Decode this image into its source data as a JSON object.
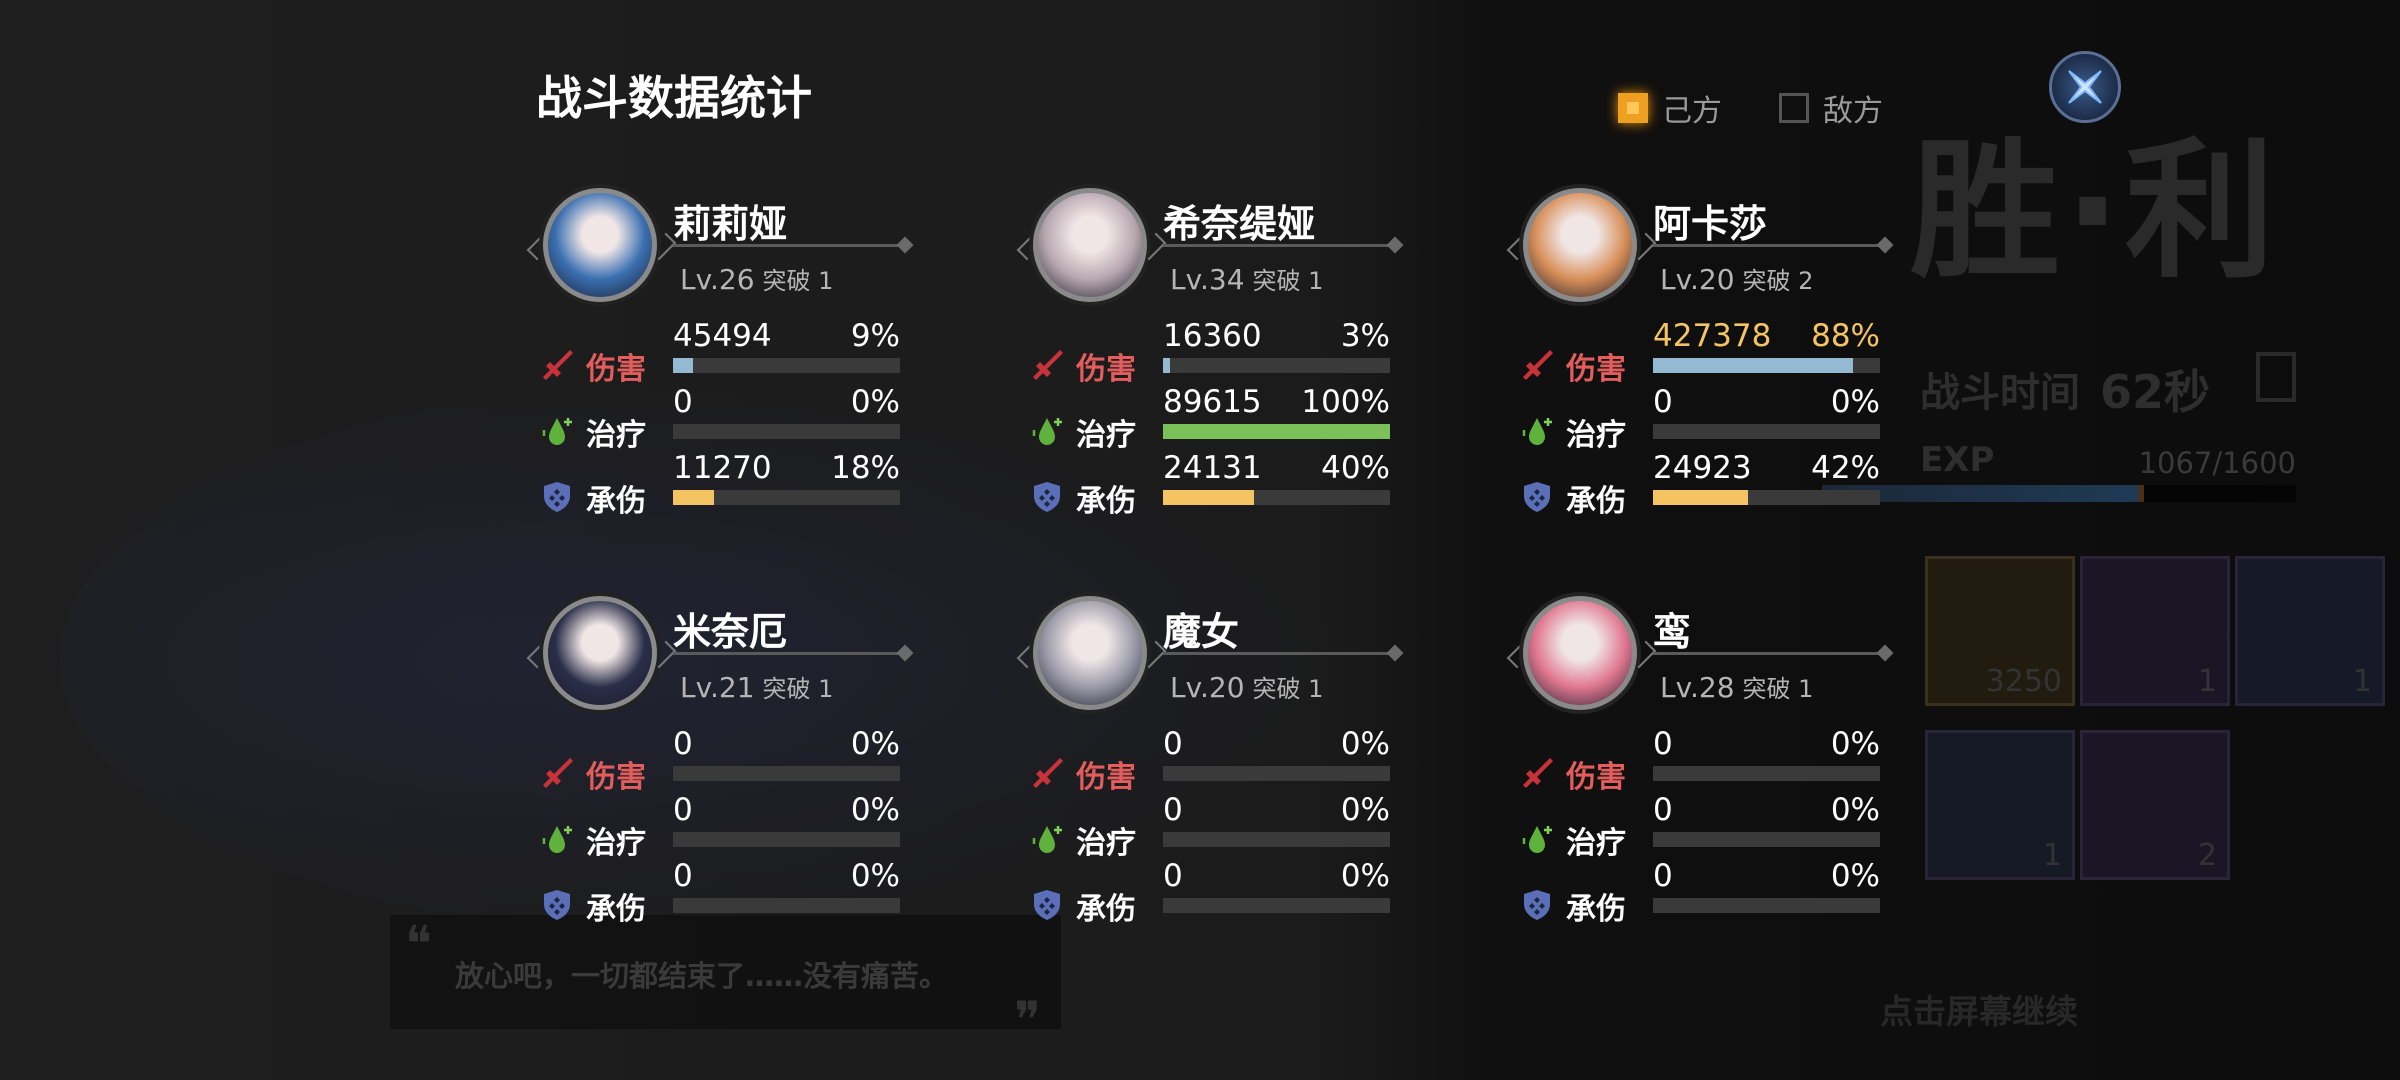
{
  "header": {
    "title": "战斗数据统计"
  },
  "filter": {
    "own_label": "己方",
    "own_checked": true,
    "enemy_label": "敌方",
    "enemy_checked": false
  },
  "close_icon": "close-x-icon",
  "background": {
    "victory": "胜·利",
    "battle_time_label": "战斗时间",
    "battle_time_value": "62秒",
    "exp_label": "EXP",
    "exp_value": "1067/1600",
    "exp_fraction": 0.667,
    "item_counts": [
      "3250",
      "1",
      "1",
      "1",
      "2"
    ],
    "quote": "放心吧，一切都结束了……没有痛苦。",
    "continue_hint": "点击屏幕继续"
  },
  "stat_labels": {
    "damage": "伤害",
    "heal": "治疗",
    "tank": "承伤"
  },
  "colors": {
    "damage_label": "#e35d5d",
    "damage_bar": "#93b9d3",
    "heal_bar": "#7cc05a",
    "tank_bar": "#f5c462",
    "track": "#3a3a3a",
    "top_value": "#f5c462"
  },
  "characters": [
    {
      "name": "莉莉娅",
      "level": "Lv.26",
      "breakthrough": "突破 1",
      "avatar_color": "#3a6fb0",
      "stats": [
        {
          "value": "45494",
          "percent": "9%",
          "fill": 0.09
        },
        {
          "value": "0",
          "percent": "0%",
          "fill": 0
        },
        {
          "value": "11270",
          "percent": "18%",
          "fill": 0.18
        }
      ]
    },
    {
      "name": "希奈缇娅",
      "level": "Lv.34",
      "breakthrough": "突破 1",
      "avatar_color": "#b8a8b0",
      "stats": [
        {
          "value": "16360",
          "percent": "3%",
          "fill": 0.03
        },
        {
          "value": "89615",
          "percent": "100%",
          "fill": 1.0
        },
        {
          "value": "24131",
          "percent": "40%",
          "fill": 0.4
        }
      ]
    },
    {
      "name": "阿卡莎",
      "level": "Lv.20",
      "breakthrough": "突破 2",
      "avatar_color": "#d8905a",
      "top_damage": true,
      "stats": [
        {
          "value": "427378",
          "percent": "88%",
          "fill": 0.88
        },
        {
          "value": "0",
          "percent": "0%",
          "fill": 0
        },
        {
          "value": "24923",
          "percent": "42%",
          "fill": 0.42
        }
      ]
    },
    {
      "name": "米奈厄",
      "level": "Lv.21",
      "breakthrough": "突破 1",
      "avatar_color": "#2a2e48",
      "stats": [
        {
          "value": "0",
          "percent": "0%",
          "fill": 0
        },
        {
          "value": "0",
          "percent": "0%",
          "fill": 0
        },
        {
          "value": "0",
          "percent": "0%",
          "fill": 0
        }
      ]
    },
    {
      "name": "魔女",
      "level": "Lv.20",
      "breakthrough": "突破 1",
      "avatar_color": "#9a9aa8",
      "stats": [
        {
          "value": "0",
          "percent": "0%",
          "fill": 0
        },
        {
          "value": "0",
          "percent": "0%",
          "fill": 0
        },
        {
          "value": "0",
          "percent": "0%",
          "fill": 0
        }
      ]
    },
    {
      "name": "鸾",
      "level": "Lv.28",
      "breakthrough": "突破 1",
      "avatar_color": "#e07890",
      "stats": [
        {
          "value": "0",
          "percent": "0%",
          "fill": 0
        },
        {
          "value": "0",
          "percent": "0%",
          "fill": 0
        },
        {
          "value": "0",
          "percent": "0%",
          "fill": 0
        }
      ]
    }
  ]
}
